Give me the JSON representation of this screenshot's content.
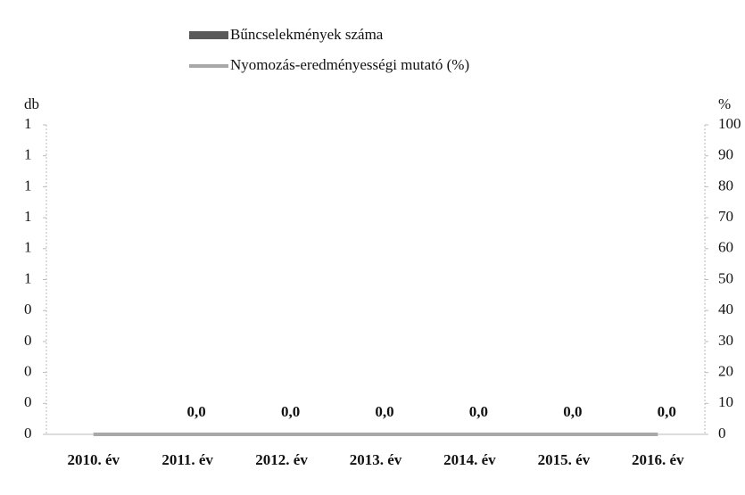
{
  "chart_data": {
    "type": "bar_line",
    "y_label": "db",
    "y2_label": "%",
    "categories": [
      "2010. év",
      "2011. év",
      "2012. év",
      "2013. év",
      "2014. év",
      "2015. év",
      "2016. év"
    ],
    "series": [
      {
        "name": "Bűncselekmények száma",
        "color": "#5a5a5a",
        "type": "bar",
        "values": [
          0,
          0,
          0,
          0,
          0,
          0,
          0
        ]
      },
      {
        "name": "Nyomozás-eredményességi mutató (%)",
        "color": "#a8a8a8",
        "type": "line",
        "axis": "y2",
        "values": [
          0,
          0,
          0,
          0,
          0,
          0,
          0
        ],
        "value_labels": [
          null,
          "0,0",
          "0,0",
          "0,0",
          "0,0",
          "0,0",
          "0,0"
        ]
      }
    ],
    "ylim": [
      0,
      1
    ],
    "yticks": [
      {
        "value": 0,
        "label": "0"
      },
      {
        "value": 0.1,
        "label": "0"
      },
      {
        "value": 0.2,
        "label": "0"
      },
      {
        "value": 0.3,
        "label": "0"
      },
      {
        "value": 0.4,
        "label": "0"
      },
      {
        "value": 0.5,
        "label": "1"
      },
      {
        "value": 0.6,
        "label": "1"
      },
      {
        "value": 0.7,
        "label": "1"
      },
      {
        "value": 0.8,
        "label": "1"
      },
      {
        "value": 0.9,
        "label": "1"
      },
      {
        "value": 1,
        "label": "1"
      }
    ],
    "y2lim": [
      0,
      100
    ],
    "y2ticks": [
      0,
      10,
      20,
      30,
      40,
      50,
      60,
      70,
      80,
      90,
      100
    ]
  }
}
